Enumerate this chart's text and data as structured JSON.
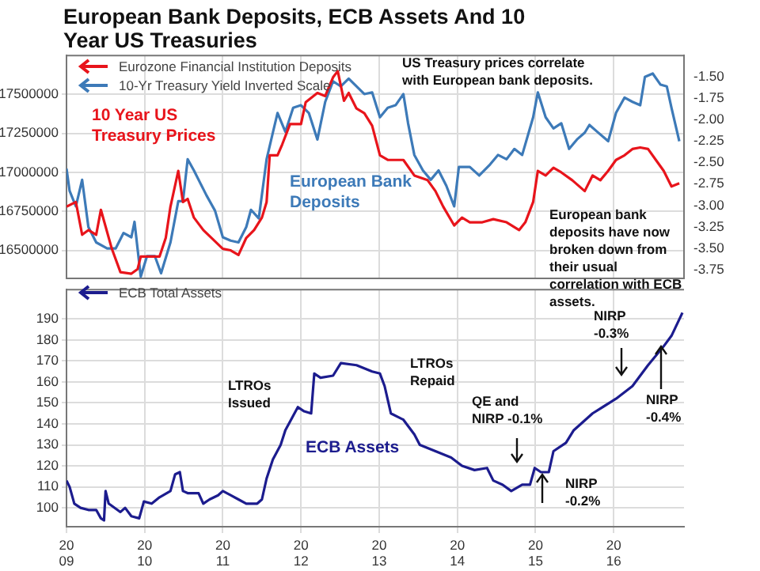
{
  "chart_data": [
    {
      "type": "line",
      "title": "European Bank Deposits, ECB Assets And 10 Year US Treasuries",
      "xlim": [
        2009,
        2016.9
      ],
      "xticks": [
        2009,
        2010,
        2011,
        2012,
        2013,
        2014,
        2015,
        2016
      ],
      "ylim": [
        16320000,
        17750000
      ],
      "yticks": [
        16500000,
        16750000,
        17000000,
        17250000,
        17500000
      ],
      "y2lim": [
        -3.85,
        -1.25
      ],
      "y2ticks": [
        {
          "value": -3.75,
          "label": "-3.75"
        },
        {
          "value": -3.5,
          "label": "-3.50"
        },
        {
          "value": -3.25,
          "label": "-3.25"
        },
        {
          "value": -3,
          "label": "-3.00"
        },
        {
          "value": -2.75,
          "label": "-2.75"
        },
        {
          "value": -2.5,
          "label": "-2.50"
        },
        {
          "value": -2.25,
          "label": "-2.25"
        },
        {
          "value": -2,
          "label": "-2.00"
        },
        {
          "value": -1.75,
          "label": "-1.75"
        },
        {
          "value": -1.5,
          "label": "-1.50"
        }
      ],
      "tick_labels": "y",
      "grid": true,
      "legend": "top left",
      "series": [
        {
          "name": "Eurozone Financial Institution Deposits",
          "color": "#e8141b",
          "x": [
            2009.0,
            2009.12,
            2009.2,
            2009.28,
            2009.38,
            2009.44,
            2009.58,
            2009.69,
            2009.83,
            2009.91,
            2009.95,
            2010.19,
            2010.27,
            2010.33,
            2010.43,
            2010.49,
            2010.55,
            2010.63,
            2010.75,
            2011.0,
            2011.1,
            2011.2,
            2011.3,
            2011.4,
            2011.5,
            2011.56,
            2011.6,
            2011.7,
            2011.76,
            2011.86,
            2012.0,
            2012.06,
            2012.21,
            2012.31,
            2012.41,
            2012.47,
            2012.55,
            2012.61,
            2012.71,
            2012.81,
            2012.91,
            2013.01,
            2013.11,
            2013.31,
            2013.45,
            2013.62,
            2013.72,
            2013.82,
            2013.96,
            2014.06,
            2014.16,
            2014.32,
            2014.46,
            2014.63,
            2014.79,
            2014.87,
            2014.97,
            2015.03,
            2015.13,
            2015.23,
            2015.33,
            2015.47,
            2015.63,
            2015.73,
            2015.83,
            2015.93,
            2016.03,
            2016.14,
            2016.24,
            2016.34,
            2016.44,
            2016.54,
            2016.64,
            2016.74,
            2016.84
          ],
          "values": [
            16780000,
            16810000,
            16600000,
            16630000,
            16600000,
            16760000,
            16510000,
            16360000,
            16350000,
            16380000,
            16460000,
            16460000,
            16580000,
            16780000,
            17010000,
            16810000,
            16830000,
            16710000,
            16630000,
            16510000,
            16500000,
            16470000,
            16580000,
            16630000,
            16710000,
            16810000,
            17110000,
            17110000,
            17180000,
            17310000,
            17310000,
            17450000,
            17510000,
            17490000,
            17610000,
            17650000,
            17460000,
            17510000,
            17410000,
            17380000,
            17300000,
            17110000,
            17080000,
            17080000,
            16980000,
            16950000,
            16880000,
            16780000,
            16660000,
            16710000,
            16680000,
            16680000,
            16700000,
            16680000,
            16630000,
            16680000,
            16810000,
            17010000,
            16980000,
            17030000,
            17000000,
            16950000,
            16880000,
            16980000,
            16950000,
            17010000,
            17080000,
            17110000,
            17150000,
            17160000,
            17150000,
            17080000,
            17010000,
            16910000,
            16930000
          ]
        },
        {
          "name": "10-Yr Treasury Yield Inverted Scale",
          "color": "#3d7ab8",
          "axis": "y2",
          "x": [
            2009.0,
            2009.04,
            2009.12,
            2009.2,
            2009.28,
            2009.38,
            2009.52,
            2009.63,
            2009.73,
            2009.83,
            2009.87,
            2009.95,
            2010.03,
            2010.13,
            2010.21,
            2010.33,
            2010.43,
            2010.49,
            2010.55,
            2010.63,
            2010.79,
            2010.9,
            2011.0,
            2011.1,
            2011.2,
            2011.3,
            2011.36,
            2011.46,
            2011.56,
            2011.64,
            2011.7,
            2011.8,
            2011.9,
            2012.0,
            2012.1,
            2012.21,
            2012.31,
            2012.41,
            2012.51,
            2012.61,
            2012.71,
            2012.81,
            2012.91,
            2013.01,
            2013.11,
            2013.21,
            2013.31,
            2013.37,
            2013.45,
            2013.56,
            2013.66,
            2013.76,
            2013.86,
            2013.96,
            2014.02,
            2014.16,
            2014.28,
            2014.42,
            2014.52,
            2014.63,
            2014.73,
            2014.83,
            2014.97,
            2015.03,
            2015.13,
            2015.23,
            2015.33,
            2015.43,
            2015.53,
            2015.63,
            2015.69,
            2015.79,
            2015.93,
            2016.03,
            2016.14,
            2016.24,
            2016.34,
            2016.4,
            2016.5,
            2016.6,
            2016.68,
            2016.74,
            2016.84
          ],
          "values": [
            -2.57,
            -2.83,
            -3.01,
            -2.7,
            -3.25,
            -3.43,
            -3.5,
            -3.5,
            -3.32,
            -3.37,
            -3.19,
            -3.83,
            -3.59,
            -3.59,
            -3.79,
            -3.43,
            -2.95,
            -2.95,
            -2.46,
            -2.59,
            -2.88,
            -3.06,
            -3.37,
            -3.41,
            -3.43,
            -3.25,
            -3.05,
            -3.15,
            -2.46,
            -2.15,
            -1.92,
            -2.14,
            -1.86,
            -1.83,
            -1.92,
            -2.23,
            -1.79,
            -1.55,
            -1.61,
            -1.52,
            -1.61,
            -1.7,
            -1.68,
            -1.97,
            -1.86,
            -1.83,
            -1.7,
            -2.04,
            -2.41,
            -2.59,
            -2.7,
            -2.59,
            -2.77,
            -3.01,
            -2.55,
            -2.55,
            -2.65,
            -2.52,
            -2.41,
            -2.46,
            -2.34,
            -2.41,
            -1.97,
            -1.68,
            -1.97,
            -2.1,
            -2.04,
            -2.34,
            -2.23,
            -2.15,
            -2.06,
            -2.14,
            -2.25,
            -1.92,
            -1.74,
            -1.79,
            -1.83,
            -1.5,
            -1.46,
            -1.59,
            -1.61,
            -1.86,
            -2.25
          ]
        }
      ],
      "annotations": [
        "10 Year US Treasury Prices",
        "European Bank Deposits",
        "US Treasury prices correlate with European bank deposits.",
        "European bank deposits have now broken down from their usual correlation with ECB assets."
      ]
    },
    {
      "type": "line",
      "xlim": [
        2009,
        2016.9
      ],
      "xticks": [
        2009,
        2010,
        2011,
        2012,
        2013,
        2014,
        2015,
        2016
      ],
      "ylim": [
        91,
        204
      ],
      "yticks": [
        100,
        110,
        120,
        130,
        140,
        150,
        160,
        170,
        180,
        190
      ],
      "grid": true,
      "legend": "top left",
      "series": [
        {
          "name": "ECB Total Assets",
          "color": "#1c1c8e",
          "x": [
            2009.0,
            2009.04,
            2009.1,
            2009.18,
            2009.28,
            2009.38,
            2009.44,
            2009.48,
            2009.5,
            2009.54,
            2009.69,
            2009.75,
            2009.83,
            2009.93,
            2009.99,
            2010.09,
            2010.19,
            2010.33,
            2010.39,
            2010.45,
            2010.49,
            2010.55,
            2010.69,
            2010.75,
            2010.83,
            2010.94,
            2011.0,
            2011.1,
            2011.2,
            2011.3,
            2011.44,
            2011.5,
            2011.56,
            2011.64,
            2011.74,
            2011.8,
            2011.96,
            2012.04,
            2012.13,
            2012.17,
            2012.25,
            2012.41,
            2012.51,
            2012.71,
            2012.91,
            2013.01,
            2013.07,
            2013.15,
            2013.31,
            2013.45,
            2013.52,
            2013.72,
            2013.92,
            2014.06,
            2014.22,
            2014.38,
            2014.46,
            2014.58,
            2014.69,
            2014.83,
            2014.93,
            2014.99,
            2015.07,
            2015.17,
            2015.23,
            2015.39,
            2015.49,
            2015.73,
            2016.03,
            2016.24,
            2016.44,
            2016.64,
            2016.74,
            2016.88
          ],
          "values": [
            113,
            110,
            102,
            100,
            99,
            99,
            95,
            94,
            108,
            102,
            98,
            100,
            96,
            95,
            103,
            102,
            105,
            108,
            116,
            117,
            108,
            107,
            107,
            102,
            104,
            106,
            108,
            106,
            104,
            102,
            102,
            104,
            114,
            123,
            130,
            137,
            148,
            146,
            145,
            164,
            162,
            163,
            169,
            168,
            165,
            164,
            158,
            145,
            142,
            135,
            130,
            127,
            124,
            120,
            118,
            119,
            113,
            111,
            108,
            111,
            111,
            119,
            117,
            117,
            127,
            131,
            137,
            145,
            152,
            158,
            168,
            177,
            182,
            193
          ]
        }
      ],
      "annotations": [
        "LTROs Issued",
        "LTROs Repaid",
        "ECB Assets",
        "QE and NIRP -0.1%",
        "NIRP -0.2%",
        "NIRP -0.3%",
        "NIRP -0.4%"
      ]
    }
  ]
}
